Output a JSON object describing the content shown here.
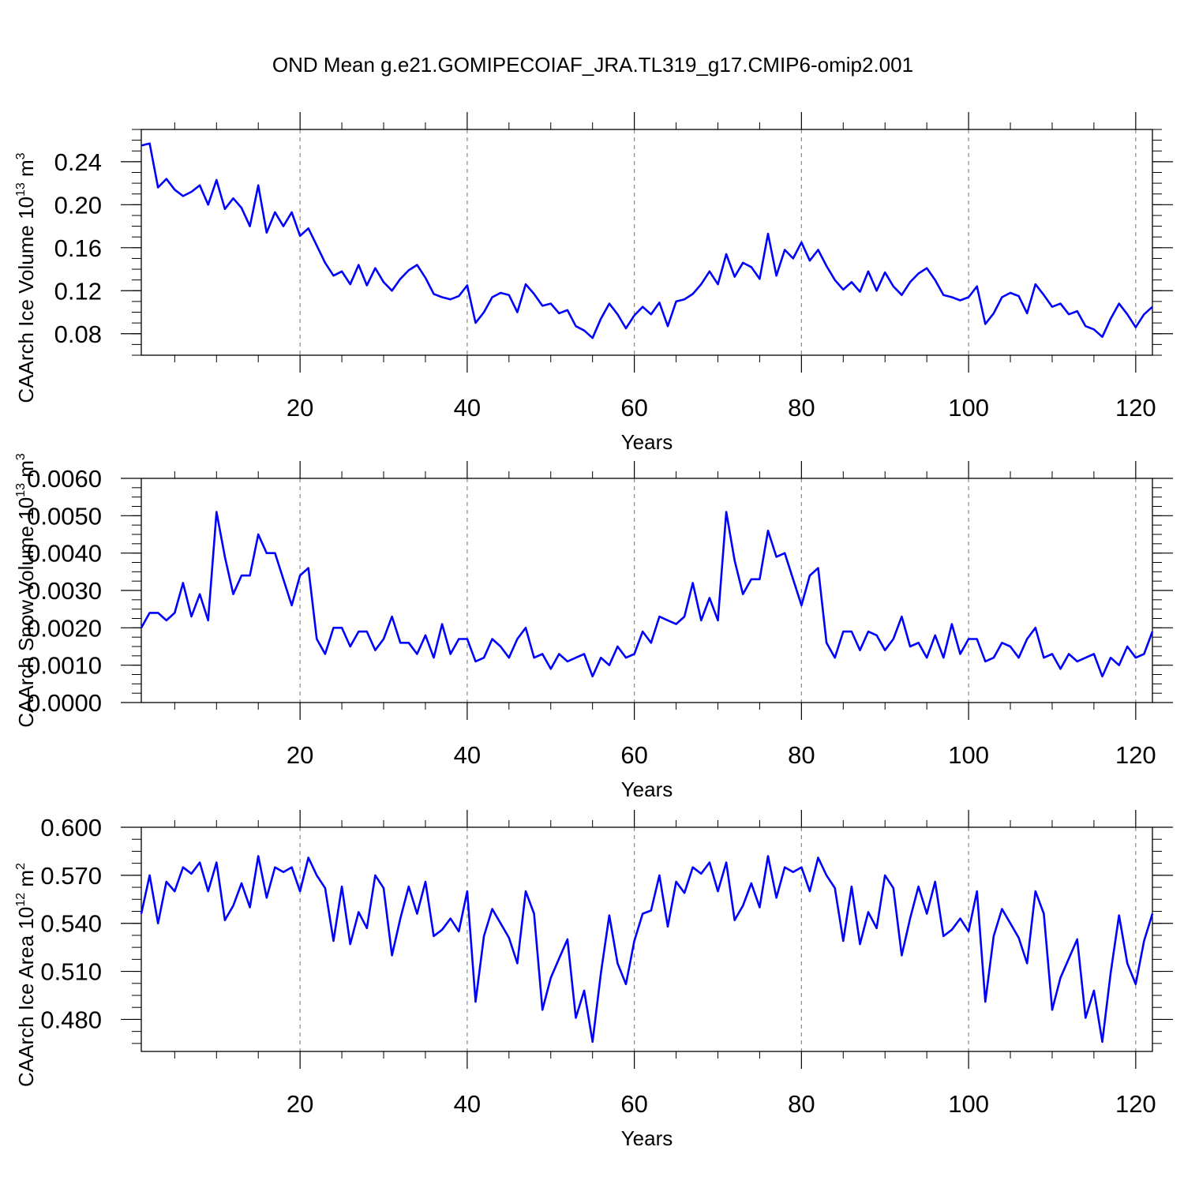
{
  "title": "OND Mean g.e21.GOMIPECOIAF_JRA.TL319_g17.CMIP6-omip2.001",
  "colors": {
    "line": "#0000ff",
    "axis": "#000000",
    "grid": "#8a8a8a"
  },
  "chart_data": [
    {
      "type": "line",
      "ylabel_main": "CAArch Ice Volume 10",
      "ylabel_sup": "13",
      "ylabel_unit": " m",
      "ylabel_unit_sup": "3",
      "xlabel": "Years",
      "xlim": [
        1,
        122
      ],
      "ylim": [
        0.06,
        0.27
      ],
      "yticks": [
        "0.08",
        "0.12",
        "0.16",
        "0.20",
        "0.24"
      ],
      "xticks": [
        "20",
        "40",
        "60",
        "80",
        "100",
        "120"
      ],
      "vlines": [
        20,
        40,
        60,
        80,
        100,
        120
      ],
      "values": [
        0.255,
        0.257,
        0.216,
        0.224,
        0.214,
        0.208,
        0.212,
        0.218,
        0.2,
        0.223,
        0.196,
        0.206,
        0.197,
        0.18,
        0.218,
        0.174,
        0.193,
        0.18,
        0.193,
        0.171,
        0.178,
        0.162,
        0.146,
        0.134,
        0.138,
        0.126,
        0.144,
        0.125,
        0.141,
        0.128,
        0.12,
        0.131,
        0.139,
        0.144,
        0.132,
        0.117,
        0.114,
        0.112,
        0.115,
        0.125,
        0.09,
        0.1,
        0.114,
        0.118,
        0.116,
        0.1,
        0.126,
        0.117,
        0.106,
        0.108,
        0.099,
        0.102,
        0.087,
        0.083,
        0.076,
        0.094,
        0.108,
        0.098,
        0.085,
        0.097,
        0.105,
        0.098,
        0.109,
        0.087,
        0.11,
        0.112,
        0.117,
        0.126,
        0.138,
        0.126,
        0.154,
        0.133,
        0.146,
        0.142,
        0.131,
        0.173,
        0.134,
        0.158,
        0.15,
        0.165,
        0.148,
        0.158,
        0.143,
        0.13,
        0.121,
        0.128,
        0.119,
        0.138,
        0.12,
        0.137,
        0.124,
        0.116,
        0.128,
        0.136,
        0.141,
        0.13,
        0.116,
        0.114,
        0.111,
        0.114,
        0.124,
        0.089,
        0.099,
        0.114,
        0.118,
        0.115,
        0.099,
        0.126,
        0.116,
        0.105,
        0.108,
        0.098,
        0.101,
        0.087,
        0.084,
        0.077,
        0.094,
        0.108,
        0.098,
        0.086,
        0.098,
        0.105
      ]
    },
    {
      "type": "line",
      "ylabel_main": "CAArch Snow Volume 10",
      "ylabel_sup": "13",
      "ylabel_unit": " m",
      "ylabel_unit_sup": "3",
      "xlabel": "Years",
      "xlim": [
        1,
        122
      ],
      "ylim": [
        0.0,
        0.006
      ],
      "yticks": [
        "0.0000",
        "0.0010",
        "0.0020",
        "0.0030",
        "0.0040",
        "0.0050",
        "0.0060"
      ],
      "xticks": [
        "20",
        "40",
        "60",
        "80",
        "100",
        "120"
      ],
      "vlines": [
        20,
        40,
        60,
        80,
        100,
        120
      ],
      "values": [
        0.002,
        0.0024,
        0.0024,
        0.0022,
        0.0024,
        0.0032,
        0.0023,
        0.0029,
        0.0022,
        0.0051,
        0.0039,
        0.0029,
        0.0034,
        0.0034,
        0.0045,
        0.004,
        0.004,
        0.0033,
        0.0026,
        0.0034,
        0.0036,
        0.0017,
        0.0013,
        0.002,
        0.002,
        0.0015,
        0.0019,
        0.0019,
        0.0014,
        0.0017,
        0.0023,
        0.0016,
        0.0016,
        0.0013,
        0.0018,
        0.0012,
        0.0021,
        0.0013,
        0.0017,
        0.0017,
        0.0011,
        0.0012,
        0.0017,
        0.0015,
        0.0012,
        0.0017,
        0.002,
        0.0012,
        0.0013,
        0.0009,
        0.0013,
        0.0011,
        0.0012,
        0.0013,
        0.0007,
        0.0012,
        0.001,
        0.0015,
        0.0012,
        0.0013,
        0.0019,
        0.0016,
        0.0023,
        0.0022,
        0.0021,
        0.0023,
        0.0032,
        0.0022,
        0.0028,
        0.0022,
        0.0051,
        0.0038,
        0.0029,
        0.0033,
        0.0033,
        0.0046,
        0.0039,
        0.004,
        0.0033,
        0.0026,
        0.0034,
        0.0036,
        0.0016,
        0.0012,
        0.0019,
        0.0019,
        0.0014,
        0.0019,
        0.0018,
        0.0014,
        0.0017,
        0.0023,
        0.0015,
        0.0016,
        0.0012,
        0.0018,
        0.0012,
        0.0021,
        0.0013,
        0.0017,
        0.0017,
        0.0011,
        0.0012,
        0.0016,
        0.0015,
        0.0012,
        0.0017,
        0.002,
        0.0012,
        0.0013,
        0.0009,
        0.0013,
        0.0011,
        0.0012,
        0.0013,
        0.0007,
        0.0012,
        0.001,
        0.0015,
        0.0012,
        0.0013,
        0.0019
      ]
    },
    {
      "type": "line",
      "ylabel_main": "CAArch Ice Area 10",
      "ylabel_sup": "12",
      "ylabel_unit": " m",
      "ylabel_unit_sup": "2",
      "xlabel": "Years",
      "xlim": [
        1,
        122
      ],
      "ylim": [
        0.46,
        0.6
      ],
      "yticks": [
        "0.480",
        "0.510",
        "0.540",
        "0.570",
        "0.600"
      ],
      "xticks": [
        "20",
        "40",
        "60",
        "80",
        "100",
        "120"
      ],
      "vlines": [
        20,
        40,
        60,
        80,
        100,
        120
      ],
      "values": [
        0.546,
        0.57,
        0.54,
        0.566,
        0.56,
        0.575,
        0.571,
        0.578,
        0.56,
        0.578,
        0.542,
        0.551,
        0.565,
        0.55,
        0.582,
        0.556,
        0.575,
        0.572,
        0.575,
        0.56,
        0.581,
        0.57,
        0.562,
        0.529,
        0.563,
        0.527,
        0.547,
        0.537,
        0.57,
        0.562,
        0.52,
        0.543,
        0.563,
        0.546,
        0.566,
        0.532,
        0.536,
        0.543,
        0.535,
        0.56,
        0.491,
        0.532,
        0.549,
        0.54,
        0.531,
        0.515,
        0.56,
        0.546,
        0.486,
        0.506,
        0.518,
        0.53,
        0.481,
        0.498,
        0.466,
        0.509,
        0.545,
        0.515,
        0.502,
        0.529,
        0.546,
        0.548,
        0.57,
        0.538,
        0.566,
        0.559,
        0.575,
        0.571,
        0.578,
        0.56,
        0.578,
        0.542,
        0.551,
        0.565,
        0.55,
        0.582,
        0.556,
        0.575,
        0.572,
        0.575,
        0.56,
        0.581,
        0.57,
        0.562,
        0.529,
        0.563,
        0.527,
        0.547,
        0.537,
        0.57,
        0.562,
        0.52,
        0.543,
        0.563,
        0.546,
        0.566,
        0.532,
        0.536,
        0.543,
        0.535,
        0.56,
        0.491,
        0.532,
        0.549,
        0.54,
        0.531,
        0.515,
        0.56,
        0.546,
        0.486,
        0.506,
        0.518,
        0.53,
        0.481,
        0.498,
        0.466,
        0.509,
        0.545,
        0.515,
        0.502,
        0.529,
        0.546
      ]
    }
  ]
}
